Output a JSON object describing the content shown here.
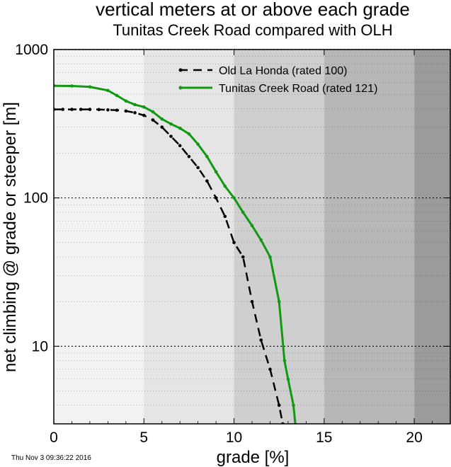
{
  "chart_data": {
    "type": "line",
    "title": "vertical meters at or above each grade",
    "subtitle": "Tunitas Creek Road compared with OLH",
    "xlabel": "grade [%]",
    "ylabel": "net climbing @ grade or steeper [m]",
    "xlim": [
      0,
      22
    ],
    "ylim": [
      3,
      1000
    ],
    "yscale": "log",
    "xticks": [
      "0",
      "5",
      "10",
      "15",
      "20"
    ],
    "xtick_values": [
      0,
      5,
      10,
      15,
      20
    ],
    "yticks": [
      "10",
      "100",
      "1000"
    ],
    "ytick_values": [
      10,
      100,
      1000
    ],
    "background_bands": [
      {
        "x": [
          0,
          5
        ],
        "color": "#f2f2f2"
      },
      {
        "x": [
          5,
          10
        ],
        "color": "#e5e5e5"
      },
      {
        "x": [
          10,
          15
        ],
        "color": "#cfcfcf"
      },
      {
        "x": [
          15,
          20
        ],
        "color": "#b7b7b7"
      },
      {
        "x": [
          20,
          22
        ],
        "color": "#9b9b9b"
      }
    ],
    "legend_position": "top-right",
    "grid": true,
    "series": [
      {
        "name": "Old La Honda (rated 100)",
        "color": "#000000",
        "dash": "dashed",
        "x": [
          0,
          0.5,
          1,
          1.5,
          2,
          2.5,
          3,
          3.5,
          4,
          4.5,
          5,
          5.5,
          6,
          6.5,
          7,
          7.5,
          8,
          8.5,
          9,
          9.5,
          10,
          10.5,
          11,
          11.5,
          12,
          12.5,
          12.7
        ],
        "y": [
          395,
          395,
          395,
          395,
          395,
          394,
          392,
          390,
          385,
          375,
          360,
          335,
          300,
          260,
          225,
          190,
          160,
          130,
          100,
          75,
          50,
          40,
          20,
          11,
          7,
          4,
          3
        ]
      },
      {
        "name": "Tunitas Creek Road (rated 121)",
        "color": "#129912",
        "dash": "solid",
        "x": [
          0,
          1,
          2,
          3,
          3.5,
          4,
          4.5,
          5,
          5.5,
          6,
          6.5,
          7,
          7.5,
          8,
          8.5,
          9,
          9.5,
          10,
          10.5,
          11,
          11.5,
          12,
          12.5,
          12.8,
          13,
          13.3,
          13.4
        ],
        "y": [
          570,
          568,
          560,
          530,
          490,
          450,
          425,
          410,
          380,
          340,
          315,
          295,
          270,
          230,
          190,
          150,
          120,
          100,
          80,
          65,
          52,
          40,
          20,
          8,
          6,
          4,
          3
        ]
      }
    ],
    "timestamp": "Thu Nov  3 09:36:22 2016"
  }
}
